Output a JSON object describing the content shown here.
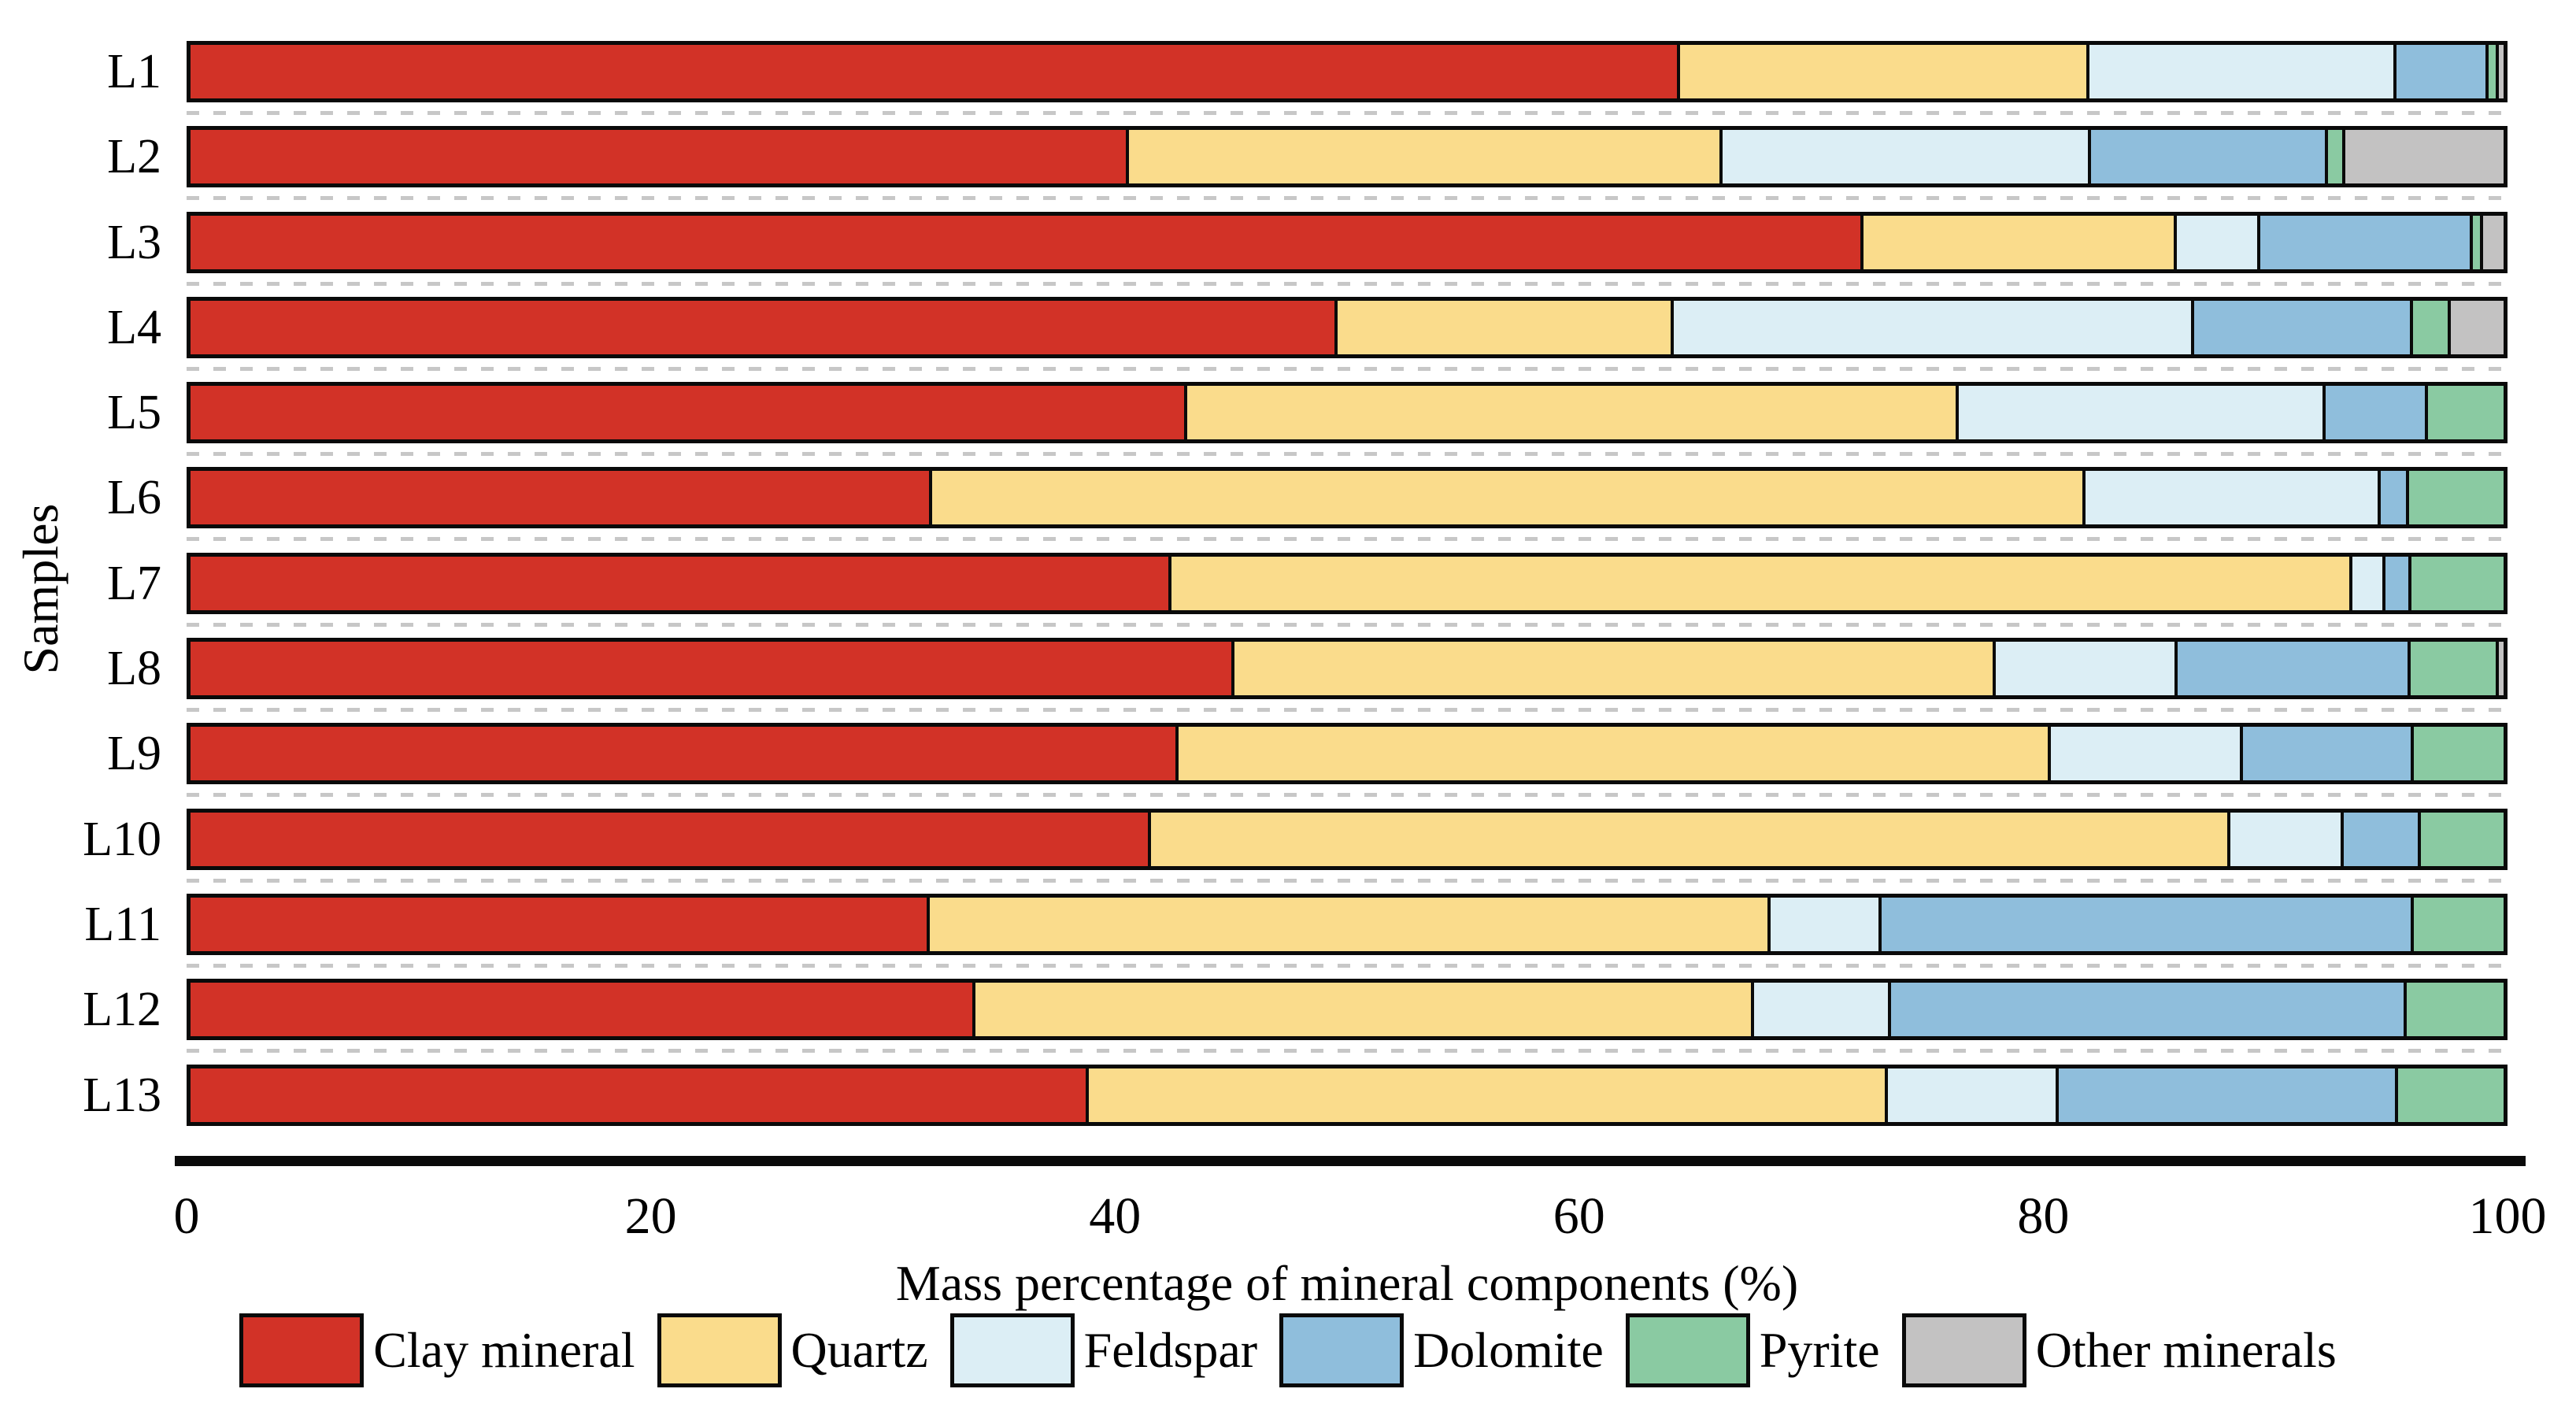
{
  "y_axis": {
    "label": "Samples"
  },
  "x_axis": {
    "title": "Mass percentage of mineral components (%)",
    "ticks": [
      "0",
      "20",
      "40",
      "60",
      "80",
      "100"
    ]
  },
  "chart_data": {
    "type": "bar",
    "orientation": "horizontal",
    "stacked": true,
    "grid": "dashed horizontal separators between bars",
    "legend_position": "bottom",
    "xlim": [
      0,
      100
    ],
    "categories": [
      "L1",
      "L2",
      "L3",
      "L4",
      "L5",
      "L6",
      "L7",
      "L8",
      "L9",
      "L10",
      "L11",
      "L12",
      "L13"
    ],
    "series": [
      {
        "name": "Clay mineral",
        "color": "#d23227",
        "values": [
          64.7,
          40.7,
          72.7,
          49.8,
          43.2,
          32.1,
          42.5,
          45.3,
          42.8,
          41.6,
          32.0,
          34.0,
          38.9
        ]
      },
      {
        "name": "Quartz",
        "color": "#fadc8c",
        "values": [
          17.7,
          25.7,
          13.5,
          14.5,
          33.4,
          50.0,
          51.2,
          33.0,
          37.8,
          46.8,
          36.4,
          33.7,
          34.6
        ]
      },
      {
        "name": "Feldspar",
        "color": "#dceef5",
        "values": [
          13.2,
          15.9,
          3.5,
          22.5,
          15.8,
          12.7,
          1.3,
          7.8,
          8.2,
          4.8,
          4.7,
          5.8,
          7.3
        ]
      },
      {
        "name": "Dolomite",
        "color": "#8fbedc",
        "values": [
          3.9,
          10.2,
          9.1,
          9.4,
          4.3,
          1.1,
          1.0,
          10.0,
          7.3,
          3.2,
          23.0,
          22.3,
          14.6
        ]
      },
      {
        "name": "Pyrite",
        "color": "#8acaa2",
        "values": [
          0.3,
          0.6,
          0.3,
          1.5,
          3.3,
          4.1,
          4.0,
          3.7,
          3.9,
          3.6,
          3.9,
          4.2,
          4.6
        ]
      },
      {
        "name": "Other minerals",
        "color": "#c3c2c2",
        "values": [
          0.2,
          6.9,
          0.9,
          2.3,
          0,
          0,
          0,
          0.2,
          0,
          0,
          0,
          0,
          0
        ]
      }
    ]
  },
  "legend": {
    "items": [
      {
        "label": "Clay mineral",
        "color": "#d23227"
      },
      {
        "label": "Quartz",
        "color": "#fadc8c"
      },
      {
        "label": "Feldspar",
        "color": "#dceef5"
      },
      {
        "label": "Dolomite",
        "color": "#8fbedc"
      },
      {
        "label": "Pyrite",
        "color": "#8acaa2"
      },
      {
        "label": "Other minerals",
        "color": "#c3c2c2"
      }
    ]
  }
}
